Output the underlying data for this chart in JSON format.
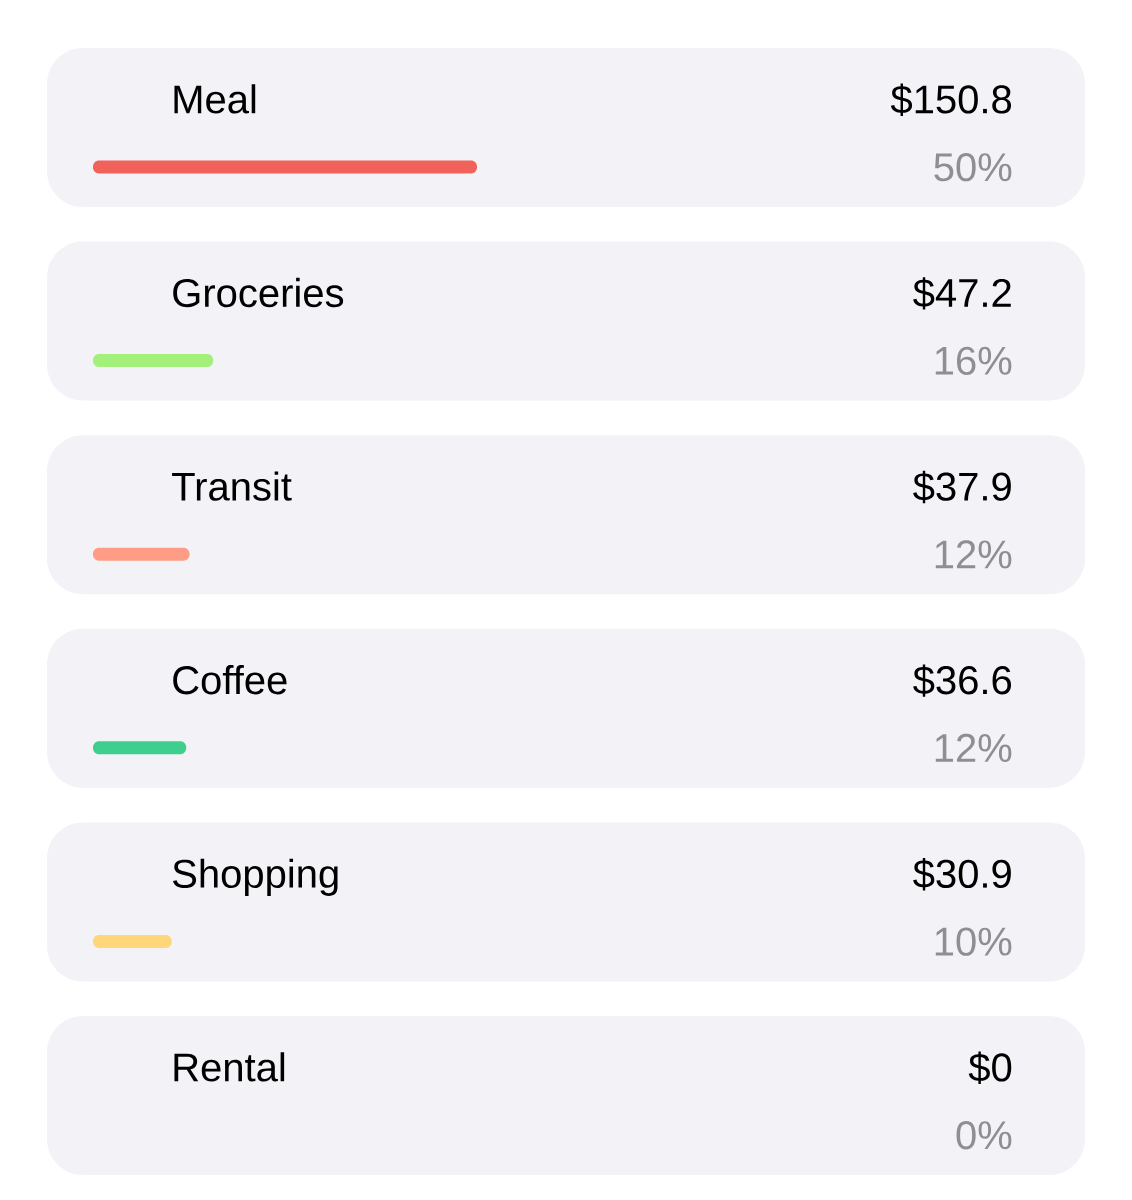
{
  "chart_data": {
    "type": "bar",
    "orientation": "horizontal",
    "categories": [
      "Meal",
      "Groceries",
      "Transit",
      "Coffee",
      "Shopping",
      "Rental"
    ],
    "values": [
      150.8,
      47.2,
      37.9,
      36.6,
      30.9,
      0
    ],
    "colors": [
      "#f0625a",
      "#a3f07a",
      "#ff9c85",
      "#3ecf8e",
      "#ffd77a",
      "#c7c7cc"
    ],
    "value_labels": [
      "$150.8",
      "$47.2",
      "$37.9",
      "$36.6",
      "$30.9",
      "$0"
    ],
    "annotations": [
      "50%",
      "16%",
      "12%",
      "12%",
      "10%",
      "0%"
    ]
  }
}
